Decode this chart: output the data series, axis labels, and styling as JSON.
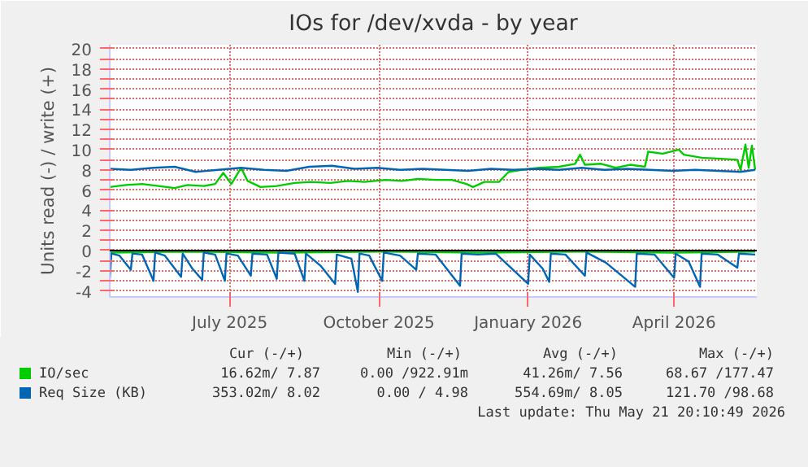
{
  "chart_data": {
    "type": "line",
    "title": "IOs for /dev/xvda - by year",
    "ylabel": "Units read (-) / write (+)",
    "xlim": [
      "2025-04-18",
      "2026-05-22"
    ],
    "xticks": [
      {
        "value": "2025-07-01",
        "label": "July 2025"
      },
      {
        "value": "2025-10-01",
        "label": "October 2025"
      },
      {
        "value": "2026-01-01",
        "label": "January 2026"
      },
      {
        "value": "2026-04-01",
        "label": "April 2026"
      }
    ],
    "ylim": [
      -4.6,
      20.4
    ],
    "yticks": [
      -4,
      {
        "value": -3,
        "label": null
      },
      -2,
      {
        "value": -1,
        "label": null
      },
      0,
      {
        "value": 1,
        "label": null
      },
      2,
      {
        "value": 3,
        "label": null
      },
      4,
      {
        "value": 5,
        "label": null
      },
      6,
      {
        "value": 7,
        "label": null
      },
      8,
      {
        "value": 9,
        "label": null
      },
      10,
      {
        "value": 11,
        "label": null
      },
      12,
      {
        "value": 13,
        "label": null
      },
      14,
      {
        "value": 15,
        "label": null
      },
      16,
      {
        "value": 17,
        "label": null
      },
      18,
      {
        "value": 19,
        "label": null
      },
      20
    ],
    "grid": true,
    "legend": "bottom left",
    "line_style": "solid",
    "marker": "none",
    "ref_lines": [
      {
        "axis": "y",
        "value": 0,
        "color": "#000000"
      }
    ],
    "series": [
      {
        "name": "IO/sec",
        "color": "#00cc00",
        "x": [
          "2025-04-18",
          "2025-04-28",
          "2025-05-08",
          "2025-05-18",
          "2025-05-28",
          "2025-06-05",
          "2025-06-15",
          "2025-06-22",
          "2025-06-27",
          "2025-07-02",
          "2025-07-08",
          "2025-07-12",
          "2025-07-20",
          "2025-07-30",
          "2025-08-10",
          "2025-08-20",
          "2025-09-01",
          "2025-09-12",
          "2025-09-22",
          "2025-10-05",
          "2025-10-15",
          "2025-10-25",
          "2025-11-05",
          "2025-11-15",
          "2025-11-24",
          "2025-11-28",
          "2025-12-05",
          "2025-12-14",
          "2025-12-20",
          "2025-12-28",
          "2026-01-08",
          "2026-01-20",
          "2026-01-30",
          "2026-02-02",
          "2026-02-05",
          "2026-02-15",
          "2026-02-24",
          "2026-03-05",
          "2026-03-14",
          "2026-03-16",
          "2026-03-25",
          "2026-04-04",
          "2026-04-07",
          "2026-04-18",
          "2026-04-30",
          "2026-05-10",
          "2026-05-12",
          "2026-05-15",
          "2026-05-17",
          "2026-05-19",
          "2026-05-21"
        ],
        "values": [
          6.3,
          6.5,
          6.6,
          6.4,
          6.2,
          6.5,
          6.4,
          6.6,
          7.7,
          6.6,
          8.2,
          6.9,
          6.3,
          6.4,
          6.7,
          6.8,
          6.7,
          6.9,
          6.8,
          7.0,
          6.9,
          7.1,
          7.0,
          7.0,
          6.6,
          6.3,
          6.8,
          6.8,
          7.8,
          8.0,
          8.2,
          8.3,
          8.6,
          9.5,
          8.5,
          8.6,
          8.2,
          8.5,
          8.3,
          9.8,
          9.6,
          10.0,
          9.5,
          9.2,
          9.1,
          9.0,
          8.0,
          10.5,
          8.2,
          10.4,
          8.0
        ]
      },
      {
        "name": "Req Size (KB)",
        "color": "#0066b3",
        "x": [
          "2025-04-18",
          "2025-05-01",
          "2025-05-15",
          "2025-05-28",
          "2025-06-10",
          "2025-06-24",
          "2025-07-08",
          "2025-07-22",
          "2025-08-05",
          "2025-08-19",
          "2025-09-02",
          "2025-09-16",
          "2025-09-30",
          "2025-10-14",
          "2025-10-28",
          "2025-11-11",
          "2025-11-25",
          "2025-12-09",
          "2025-12-23",
          "2026-01-06",
          "2026-01-20",
          "2026-02-03",
          "2026-02-17",
          "2026-03-03",
          "2026-03-17",
          "2026-03-31",
          "2026-04-14",
          "2026-04-28",
          "2026-05-12",
          "2026-05-21"
        ],
        "values": [
          8.1,
          8.0,
          8.2,
          8.3,
          7.8,
          8.0,
          8.2,
          8.0,
          7.9,
          8.3,
          8.4,
          8.1,
          8.2,
          8.0,
          8.1,
          8.0,
          7.9,
          8.1,
          8.0,
          8.1,
          8.0,
          8.2,
          8.0,
          8.1,
          8.0,
          7.9,
          8.0,
          7.9,
          7.8,
          8.0
        ]
      },
      {
        "color": "#00cc00",
        "x": [
          "2025-04-18",
          "2025-06-01",
          "2025-08-01",
          "2025-10-01",
          "2025-12-01",
          "2026-02-01",
          "2026-04-01",
          "2026-05-21"
        ],
        "values": [
          -0.2,
          -0.1,
          -0.2,
          -0.1,
          -0.2,
          -0.1,
          -0.2,
          -0.1
        ]
      },
      {
        "color": "#0066b3",
        "x": [
          "2025-04-18",
          "2025-04-19",
          "2025-04-24",
          "2025-05-01",
          "2025-05-02",
          "2025-05-08",
          "2025-05-15",
          "2025-05-16",
          "2025-05-22",
          "2025-06-01",
          "2025-06-02",
          "2025-06-08",
          "2025-06-14",
          "2025-06-15",
          "2025-06-22",
          "2025-06-28",
          "2025-06-29",
          "2025-07-06",
          "2025-07-14",
          "2025-07-15",
          "2025-07-24",
          "2025-07-30",
          "2025-07-31",
          "2025-08-10",
          "2025-08-16",
          "2025-08-17",
          "2025-08-26",
          "2025-09-04",
          "2025-09-05",
          "2025-09-14",
          "2025-09-18",
          "2025-09-19",
          "2025-09-25",
          "2025-10-03",
          "2025-10-04",
          "2025-10-14",
          "2025-10-24",
          "2025-10-25",
          "2025-11-05",
          "2025-11-20",
          "2025-11-21",
          "2025-12-01",
          "2025-12-12",
          "2026-01-01",
          "2026-01-02",
          "2026-01-10",
          "2026-01-14",
          "2026-01-15",
          "2026-01-24",
          "2026-02-05",
          "2026-02-06",
          "2026-02-18",
          "2026-03-08",
          "2026-03-09",
          "2026-03-20",
          "2026-04-01",
          "2026-04-02",
          "2026-04-10",
          "2026-04-17",
          "2026-04-18",
          "2026-04-28",
          "2026-05-10",
          "2026-05-11",
          "2026-05-21"
        ],
        "values": [
          -2.8,
          -0.3,
          -0.5,
          -1.9,
          -0.3,
          -0.4,
          -3.0,
          -0.2,
          -0.5,
          -2.6,
          -0.3,
          -1.8,
          -2.9,
          -0.2,
          -0.4,
          -3.0,
          -0.3,
          -0.5,
          -2.5,
          -0.3,
          -0.4,
          -2.8,
          -0.2,
          -0.3,
          -3.0,
          -0.3,
          -1.5,
          -3.3,
          -0.4,
          -0.8,
          -4.1,
          -0.3,
          -0.5,
          -3.0,
          -0.2,
          -0.5,
          -1.9,
          -0.3,
          -0.4,
          -3.5,
          -0.3,
          -0.4,
          -0.3,
          -3.3,
          -0.4,
          -1.8,
          -3.1,
          -0.3,
          -0.4,
          -2.5,
          -0.2,
          -1.2,
          -3.6,
          -0.3,
          -0.4,
          -2.7,
          -0.3,
          -1.1,
          -3.6,
          -0.3,
          -0.4,
          -1.7,
          -0.3,
          -0.4
        ]
      }
    ],
    "annotations": [
      "Cur (-/+)  Min (-/+)  Avg (-/+)  Max (-/+)",
      "16.62m/ 7.87  0.00 /922.91m  41.26m/ 7.56  68.67 /177.47",
      "353.02m/ 8.02  0.00 / 4.98  554.69m/ 8.05  121.70 /98.68",
      "Last update: Thu May 21 20:10:49 2026"
    ]
  }
}
